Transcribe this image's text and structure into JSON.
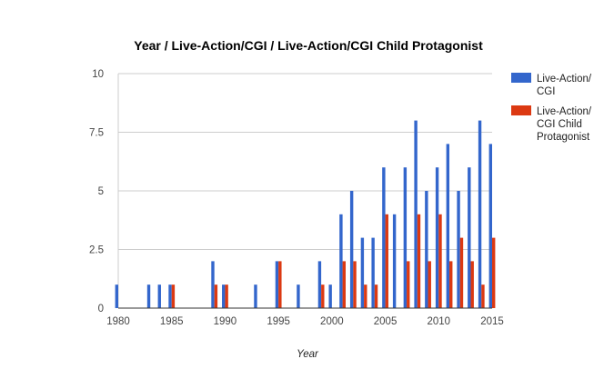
{
  "chart_data": {
    "type": "bar",
    "title": "Year / Live-Action/CGI / Live-Action/CGI Child Protagonist",
    "xlabel": "Year",
    "ylabel": "",
    "xlim": [
      1980,
      2015
    ],
    "ylim": [
      0,
      10
    ],
    "x_ticks": [
      "1980",
      "1985",
      "1990",
      "1995",
      "2000",
      "2005",
      "2010",
      "2015"
    ],
    "y_ticks": [
      "0",
      "2.5",
      "5",
      "7.5",
      "10"
    ],
    "grid": "horizontal",
    "legend_position": "right",
    "x": [
      1980,
      1983,
      1984,
      1985,
      1989,
      1990,
      1993,
      1995,
      1997,
      1999,
      2000,
      2001,
      2002,
      2003,
      2004,
      2005,
      2006,
      2007,
      2008,
      2009,
      2010,
      2011,
      2012,
      2013,
      2014,
      2015
    ],
    "series": [
      {
        "name": "Live-Action/ CGI",
        "legend_lines": [
          "Live-Action/",
          "CGI"
        ],
        "color": "#3366cc",
        "values": [
          1,
          1,
          1,
          1,
          2,
          1,
          1,
          2,
          1,
          2,
          1,
          4,
          5,
          3,
          3,
          6,
          4,
          6,
          8,
          5,
          6,
          7,
          5,
          6,
          8,
          7
        ]
      },
      {
        "name": "Live-Action/ CGI Child Protagonist",
        "legend_lines": [
          "Live-Action/",
          "CGI Child",
          "Protagonist"
        ],
        "color": "#dc3912",
        "values": [
          0,
          0,
          0,
          1,
          1,
          1,
          0,
          2,
          0,
          1,
          0,
          2,
          2,
          1,
          1,
          4,
          0,
          2,
          4,
          2,
          4,
          2,
          3,
          2,
          1,
          3
        ]
      }
    ]
  }
}
